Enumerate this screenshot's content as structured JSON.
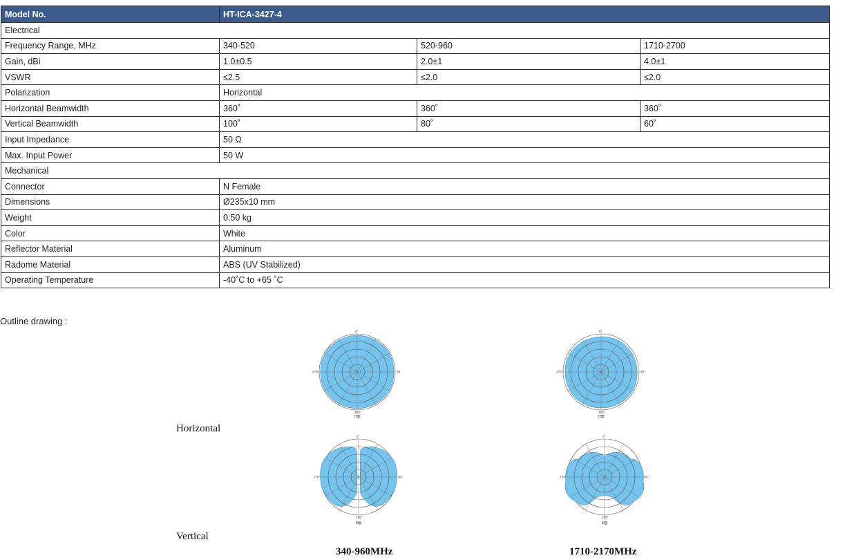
{
  "table": {
    "header": [
      "Model No.",
      "HT-ICA-3427-4"
    ],
    "rows": [
      {
        "type": "section",
        "label": "Electrical"
      },
      {
        "type": "multi",
        "label": "Frequency Range, MHz",
        "values": [
          "340-520",
          "520-960",
          "1710-2700"
        ]
      },
      {
        "type": "multi",
        "label": "Gain, dBi",
        "values": [
          "1.0±0.5",
          "2.0±1",
          "4.0±1"
        ]
      },
      {
        "type": "multi",
        "label": "VSWR",
        "values": [
          "≤2.5",
          "≤2.0",
          "≤2.0"
        ]
      },
      {
        "type": "single",
        "label": "Polarization",
        "value": "Horizontal"
      },
      {
        "type": "multi",
        "label": "Horizontal Beamwidth",
        "values": [
          "360˚",
          "360˚",
          "360˚"
        ]
      },
      {
        "type": "multi",
        "label": "Vertical Beamwidth",
        "values": [
          "100˚",
          "80˚",
          "60˚"
        ]
      },
      {
        "type": "single",
        "label": "Input Impedance",
        "value": "50 Ω"
      },
      {
        "type": "single",
        "label": "Max. Input Power",
        "value": "50 W"
      },
      {
        "type": "section",
        "label": "Mechanical"
      },
      {
        "type": "single",
        "label": "Connector",
        "value": "N Female"
      },
      {
        "type": "single",
        "label": "Dimensions",
        "value": "Ø235x10 mm"
      },
      {
        "type": "single",
        "label": "Weight",
        "value": "0.50 kg"
      },
      {
        "type": "single",
        "label": "Color",
        "value": "White"
      },
      {
        "type": "single",
        "label": "Reflector Material",
        "value": "Aluminum"
      },
      {
        "type": "single",
        "label": "Radome Material",
        "value": "ABS (UV Stabilized)"
      },
      {
        "type": "single",
        "label": "Operating Temperature",
        "value": "-40˚C to +65 ˚C"
      }
    ]
  },
  "outline": {
    "title": "Outline drawing :",
    "horizontal_label": "Horizontal",
    "vertical_label": "Vertical",
    "band_labels": [
      "340-960MHz",
      "1710-2170MHz"
    ],
    "plot_ticks": {
      "top": "0°",
      "right": "90°",
      "bottom": "180°",
      "left": "270°"
    },
    "plot_caption": "H面",
    "vplot_caption": "E面"
  },
  "colors": {
    "header_bg": "#3b5b8d",
    "pattern_fill": "#6ec1ee"
  }
}
